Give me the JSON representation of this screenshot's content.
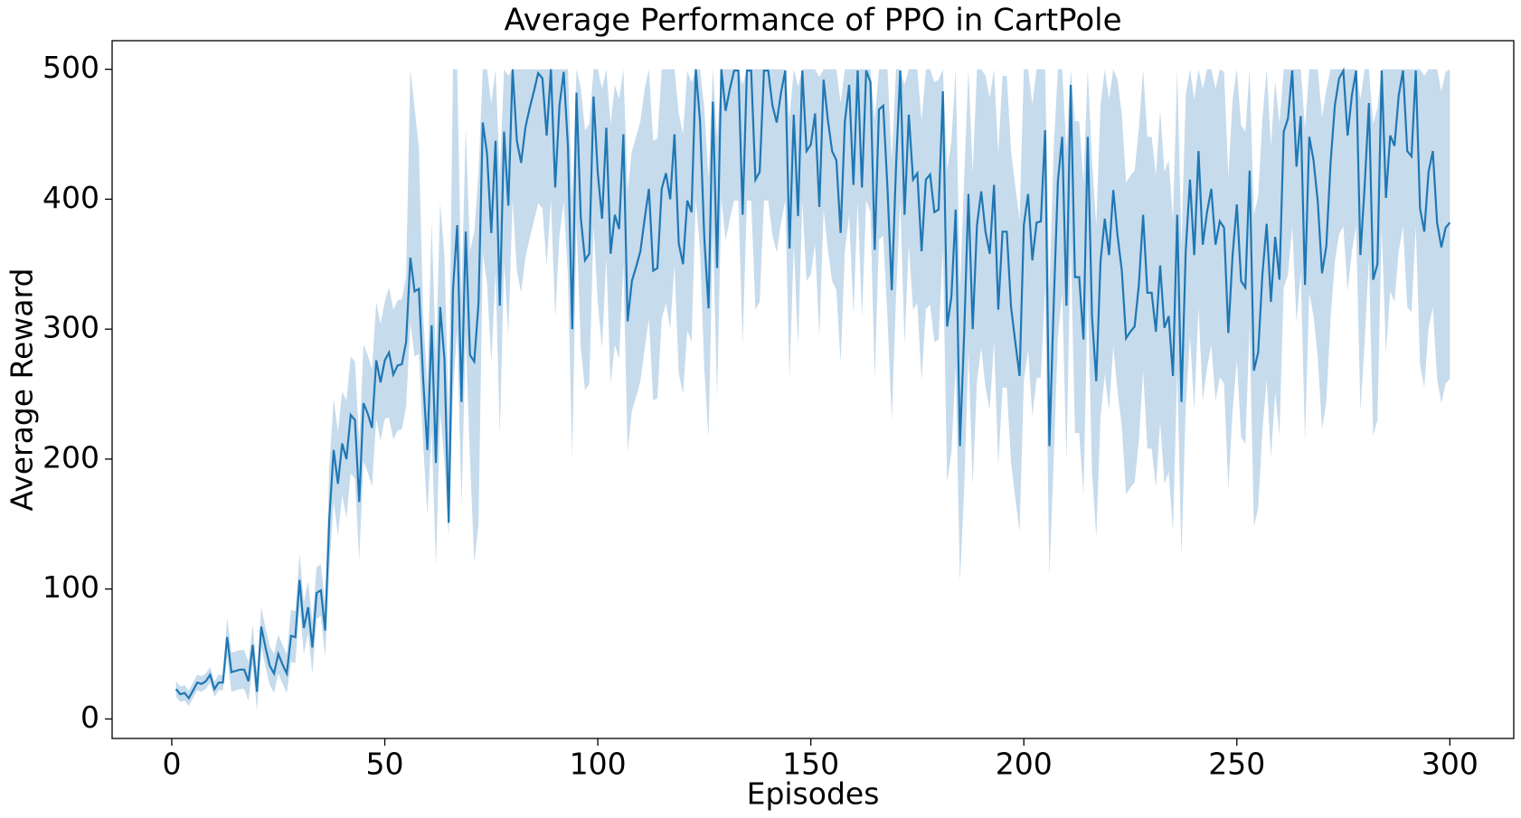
{
  "chart_data": {
    "type": "line",
    "title": "Average Performance of PPO in CartPole",
    "x_label": "Episodes",
    "y_label": "Average Reward",
    "color": "#1f77b4",
    "band_color": "#c6dbec",
    "xlim": [
      -14,
      315
    ],
    "xticks": [
      0,
      50,
      100,
      150,
      200,
      250,
      300
    ],
    "ylim": [
      -15,
      522
    ],
    "yticks": [
      0,
      100,
      200,
      300,
      400,
      500
    ],
    "x": [
      1,
      2,
      3,
      4,
      5,
      6,
      7,
      8,
      9,
      10,
      11,
      12,
      13,
      14,
      15,
      16,
      17,
      18,
      19,
      20,
      21,
      22,
      23,
      24,
      25,
      26,
      27,
      28,
      29,
      30,
      31,
      32,
      33,
      34,
      35,
      36,
      37,
      38,
      39,
      40,
      41,
      42,
      43,
      44,
      45,
      46,
      47,
      48,
      49,
      50,
      51,
      52,
      53,
      54,
      55,
      56,
      57,
      58,
      59,
      60,
      61,
      62,
      63,
      64,
      65,
      66,
      67,
      68,
      69,
      70,
      71,
      72,
      73,
      74,
      75,
      76,
      77,
      78,
      79,
      80,
      81,
      82,
      83,
      84,
      85,
      86,
      87,
      88,
      89,
      90,
      91,
      92,
      93,
      94,
      95,
      96,
      97,
      98,
      99,
      100,
      101,
      102,
      103,
      104,
      105,
      106,
      107,
      108,
      109,
      110,
      111,
      112,
      113,
      114,
      115,
      116,
      117,
      118,
      119,
      120,
      121,
      122,
      123,
      124,
      125,
      126,
      127,
      128,
      129,
      130,
      131,
      132,
      133,
      134,
      135,
      136,
      137,
      138,
      139,
      140,
      141,
      142,
      143,
      144,
      145,
      146,
      147,
      148,
      149,
      150,
      151,
      152,
      153,
      154,
      155,
      156,
      157,
      158,
      159,
      160,
      161,
      162,
      163,
      164,
      165,
      166,
      167,
      168,
      169,
      170,
      171,
      172,
      173,
      174,
      175,
      176,
      177,
      178,
      179,
      180,
      181,
      182,
      183,
      184,
      185,
      186,
      187,
      188,
      189,
      190,
      191,
      192,
      193,
      194,
      195,
      196,
      197,
      198,
      199,
      200,
      201,
      202,
      203,
      204,
      205,
      206,
      207,
      208,
      209,
      210,
      211,
      212,
      213,
      214,
      215,
      216,
      217,
      218,
      219,
      220,
      221,
      222,
      223,
      224,
      225,
      226,
      227,
      228,
      229,
      230,
      231,
      232,
      233,
      234,
      235,
      236,
      237,
      238,
      239,
      240,
      241,
      242,
      243,
      244,
      245,
      246,
      247,
      248,
      249,
      250,
      251,
      252,
      253,
      254,
      255,
      256,
      257,
      258,
      259,
      260,
      261,
      262,
      263,
      264,
      265,
      266,
      267,
      268,
      269,
      270,
      271,
      272,
      273,
      274,
      275,
      276,
      277,
      278,
      279,
      280,
      281,
      282,
      283,
      284,
      285,
      286,
      287,
      288,
      289,
      290,
      291,
      292,
      293,
      294,
      295,
      296,
      297,
      298,
      299,
      300
    ],
    "values": [
      23,
      19,
      20,
      16,
      22,
      28,
      27,
      29,
      34,
      23,
      28,
      28,
      63,
      36,
      37,
      38,
      38,
      29,
      57,
      21,
      71,
      55,
      41,
      35,
      50,
      42,
      35,
      64,
      63,
      107,
      70,
      86,
      55,
      97,
      99,
      68,
      155,
      207,
      181,
      212,
      200,
      234,
      230,
      167,
      243,
      235,
      224,
      276,
      259,
      276,
      282,
      265,
      272,
      273,
      290,
      355,
      329,
      331,
      262,
      207,
      303,
      197,
      317,
      277,
      151,
      330,
      380,
      244,
      375,
      280,
      275,
      320,
      459,
      435,
      374,
      445,
      318,
      452,
      395,
      500,
      445,
      428,
      455,
      470,
      483,
      497,
      493,
      449,
      500,
      409,
      472,
      498,
      440,
      300,
      482,
      386,
      353,
      358,
      479,
      420,
      385,
      455,
      358,
      388,
      377,
      450,
      306,
      337,
      348,
      360,
      385,
      408,
      345,
      347,
      408,
      420,
      400,
      450,
      366,
      350,
      399,
      390,
      500,
      460,
      370,
      316,
      475,
      347,
      500,
      468,
      485,
      499,
      499,
      388,
      499,
      499,
      415,
      421,
      499,
      499,
      472,
      459,
      482,
      499,
      362,
      465,
      387,
      499,
      437,
      442,
      466,
      394,
      492,
      461,
      437,
      430,
      374,
      460,
      488,
      411,
      499,
      409,
      499,
      490,
      361,
      469,
      472,
      408,
      330,
      425,
      499,
      388,
      465,
      415,
      420,
      360,
      415,
      419,
      390,
      392,
      483,
      302,
      325,
      392,
      210,
      297,
      404,
      300,
      380,
      406,
      375,
      358,
      411,
      315,
      375,
      375,
      317,
      290,
      264,
      380,
      404,
      353,
      382,
      383,
      453,
      210,
      318,
      414,
      448,
      318,
      488,
      340,
      340,
      292,
      448,
      310,
      260,
      352,
      385,
      357,
      407,
      372,
      345,
      293,
      298,
      302,
      334,
      388,
      328,
      328,
      298,
      349,
      301,
      310,
      264,
      388,
      244,
      360,
      415,
      357,
      437,
      365,
      390,
      408,
      365,
      383,
      378,
      297,
      357,
      396,
      337,
      332,
      422,
      268,
      282,
      342,
      381,
      321,
      371,
      338,
      452,
      462,
      499,
      425,
      464,
      334,
      448,
      430,
      398,
      343,
      364,
      428,
      472,
      493,
      499,
      449,
      480,
      499,
      357,
      410,
      474,
      338,
      350,
      499,
      401,
      449,
      441,
      480,
      499,
      437,
      433,
      499,
      393,
      375,
      421,
      437,
      382,
      363,
      378,
      382
    ],
    "lower": [
      17,
      13,
      14,
      10,
      16,
      22,
      21,
      23,
      28,
      17,
      22,
      22,
      48,
      21,
      22,
      23,
      23,
      14,
      42,
      6,
      56,
      40,
      26,
      20,
      35,
      27,
      20,
      44,
      43,
      87,
      50,
      66,
      35,
      77,
      79,
      48,
      115,
      167,
      141,
      172,
      155,
      189,
      185,
      122,
      198,
      190,
      179,
      231,
      214,
      231,
      232,
      215,
      222,
      223,
      240,
      305,
      279,
      281,
      212,
      157,
      223,
      117,
      237,
      197,
      141,
      250,
      300,
      164,
      295,
      200,
      120,
      150,
      359,
      335,
      274,
      345,
      218,
      352,
      295,
      400,
      345,
      328,
      355,
      370,
      383,
      397,
      393,
      349,
      400,
      309,
      372,
      398,
      340,
      200,
      382,
      286,
      253,
      258,
      379,
      320,
      285,
      355,
      258,
      288,
      277,
      350,
      206,
      237,
      248,
      260,
      285,
      308,
      245,
      247,
      308,
      320,
      300,
      350,
      266,
      250,
      299,
      290,
      400,
      360,
      270,
      216,
      375,
      247,
      400,
      368,
      385,
      399,
      399,
      288,
      399,
      399,
      315,
      321,
      399,
      399,
      372,
      359,
      382,
      399,
      262,
      365,
      287,
      399,
      337,
      342,
      366,
      294,
      392,
      361,
      337,
      330,
      274,
      360,
      388,
      311,
      399,
      309,
      399,
      390,
      261,
      369,
      372,
      308,
      230,
      325,
      399,
      288,
      365,
      315,
      320,
      260,
      315,
      319,
      290,
      292,
      363,
      182,
      205,
      272,
      105,
      177,
      284,
      180,
      260,
      286,
      255,
      238,
      291,
      195,
      255,
      255,
      197,
      170,
      144,
      260,
      284,
      233,
      262,
      263,
      333,
      110,
      198,
      294,
      328,
      198,
      368,
      220,
      220,
      172,
      328,
      190,
      140,
      232,
      265,
      237,
      287,
      252,
      225,
      173,
      178,
      182,
      214,
      268,
      208,
      208,
      178,
      229,
      181,
      190,
      144,
      268,
      124,
      240,
      295,
      237,
      317,
      245,
      270,
      288,
      245,
      263,
      258,
      177,
      237,
      276,
      217,
      212,
      302,
      148,
      162,
      222,
      261,
      201,
      251,
      218,
      332,
      342,
      379,
      305,
      344,
      214,
      328,
      310,
      278,
      223,
      244,
      308,
      352,
      373,
      379,
      329,
      360,
      379,
      237,
      290,
      354,
      218,
      230,
      379,
      281,
      329,
      321,
      360,
      379,
      317,
      313,
      379,
      273,
      255,
      301,
      317,
      262,
      243,
      258,
      262
    ],
    "upper": [
      29,
      25,
      26,
      22,
      28,
      34,
      33,
      35,
      40,
      29,
      34,
      34,
      78,
      51,
      52,
      53,
      53,
      44,
      72,
      36,
      86,
      70,
      56,
      50,
      65,
      57,
      50,
      84,
      83,
      127,
      90,
      106,
      75,
      117,
      119,
      88,
      195,
      247,
      221,
      252,
      245,
      279,
      275,
      212,
      288,
      280,
      269,
      321,
      304,
      321,
      332,
      315,
      322,
      323,
      340,
      500,
      470,
      440,
      312,
      257,
      383,
      277,
      397,
      357,
      231,
      500,
      500,
      324,
      455,
      360,
      375,
      420,
      500,
      500,
      474,
      500,
      418,
      500,
      495,
      500,
      500,
      500,
      500,
      500,
      500,
      500,
      500,
      500,
      500,
      500,
      500,
      500,
      500,
      400,
      500,
      486,
      453,
      458,
      500,
      500,
      485,
      500,
      458,
      488,
      477,
      500,
      406,
      437,
      448,
      460,
      485,
      500,
      445,
      447,
      500,
      500,
      500,
      500,
      466,
      450,
      499,
      490,
      500,
      500,
      470,
      416,
      500,
      447,
      500,
      500,
      500,
      500,
      500,
      488,
      500,
      500,
      500,
      500,
      500,
      500,
      500,
      500,
      500,
      500,
      462,
      500,
      487,
      500,
      500,
      500,
      500,
      494,
      500,
      500,
      500,
      500,
      474,
      500,
      500,
      500,
      500,
      500,
      500,
      500,
      461,
      500,
      500,
      500,
      430,
      500,
      500,
      488,
      500,
      500,
      500,
      460,
      500,
      500,
      490,
      492,
      500,
      422,
      445,
      500,
      330,
      417,
      500,
      420,
      500,
      500,
      495,
      478,
      500,
      435,
      495,
      495,
      437,
      410,
      384,
      500,
      500,
      473,
      500,
      500,
      500,
      330,
      438,
      500,
      500,
      438,
      500,
      460,
      460,
      412,
      500,
      430,
      380,
      472,
      500,
      477,
      500,
      492,
      465,
      413,
      418,
      422,
      454,
      500,
      448,
      448,
      418,
      469,
      421,
      430,
      384,
      500,
      364,
      480,
      500,
      477,
      500,
      485,
      500,
      500,
      485,
      500,
      498,
      417,
      477,
      500,
      457,
      452,
      500,
      388,
      402,
      462,
      500,
      441,
      491,
      458,
      500,
      500,
      500,
      500,
      500,
      454,
      500,
      500,
      500,
      463,
      484,
      500,
      500,
      500,
      500,
      500,
      500,
      500,
      477,
      500,
      500,
      458,
      470,
      500,
      500,
      500,
      500,
      500,
      500,
      500,
      500,
      500,
      500,
      495,
      500,
      500,
      500,
      483,
      498,
      500
    ]
  }
}
